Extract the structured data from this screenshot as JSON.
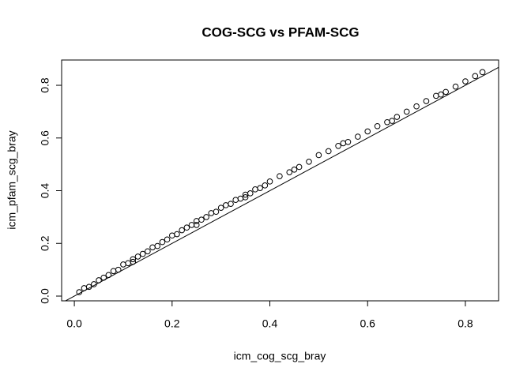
{
  "chart_data": {
    "type": "scatter",
    "title": "COG-SCG vs PFAM-SCG",
    "xlabel": "icm_cog_scg_bray",
    "ylabel": "icm_pfam_scg_bray",
    "x": [
      0.01,
      0.02,
      0.03,
      0.04,
      0.05,
      0.06,
      0.07,
      0.08,
      0.09,
      0.1,
      0.11,
      0.12,
      0.13,
      0.14,
      0.15,
      0.16,
      0.17,
      0.18,
      0.19,
      0.2,
      0.21,
      0.22,
      0.23,
      0.24,
      0.25,
      0.26,
      0.27,
      0.28,
      0.29,
      0.3,
      0.31,
      0.32,
      0.33,
      0.34,
      0.35,
      0.36,
      0.37,
      0.38,
      0.39,
      0.4,
      0.42,
      0.44,
      0.46,
      0.48,
      0.5,
      0.52,
      0.54,
      0.56,
      0.58,
      0.6,
      0.62,
      0.64,
      0.66,
      0.68,
      0.7,
      0.72,
      0.74,
      0.76,
      0.78,
      0.8,
      0.82,
      0.835,
      0.12,
      0.25,
      0.35,
      0.45,
      0.55,
      0.65,
      0.75
    ],
    "values": [
      0.015,
      0.03,
      0.035,
      0.045,
      0.06,
      0.07,
      0.08,
      0.095,
      0.1,
      0.12,
      0.125,
      0.14,
      0.15,
      0.16,
      0.17,
      0.185,
      0.19,
      0.205,
      0.215,
      0.23,
      0.235,
      0.25,
      0.26,
      0.27,
      0.285,
      0.29,
      0.3,
      0.315,
      0.32,
      0.335,
      0.345,
      0.35,
      0.365,
      0.37,
      0.385,
      0.39,
      0.405,
      0.41,
      0.42,
      0.435,
      0.455,
      0.47,
      0.49,
      0.51,
      0.535,
      0.55,
      0.57,
      0.585,
      0.605,
      0.625,
      0.645,
      0.66,
      0.68,
      0.7,
      0.72,
      0.74,
      0.76,
      0.775,
      0.795,
      0.815,
      0.835,
      0.85,
      0.13,
      0.27,
      0.375,
      0.48,
      0.58,
      0.665,
      0.765
    ],
    "color": "#000000",
    "reference_line": {
      "slope": 1,
      "intercept": 0
    },
    "xlim": [
      -0.026,
      0.868
    ],
    "ylim": [
      -0.018,
      0.896
    ],
    "xticks": [
      0.0,
      0.2,
      0.4,
      0.6,
      0.8
    ],
    "yticks": [
      0.0,
      0.2,
      0.4,
      0.6,
      0.8
    ]
  }
}
